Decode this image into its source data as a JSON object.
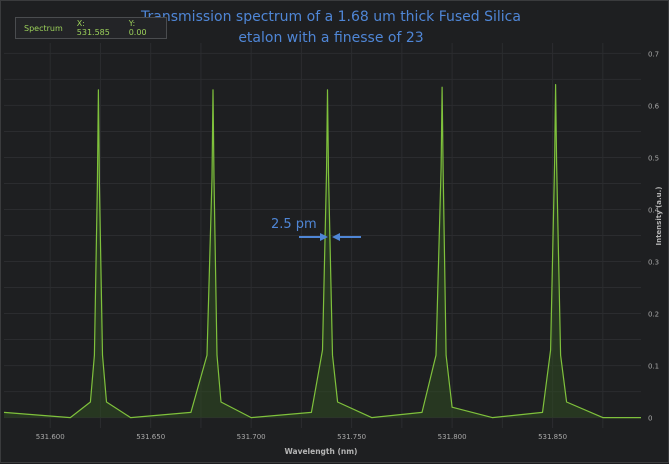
{
  "chart_data": {
    "type": "line",
    "title_lines": [
      "Transmission spectrum of a 1.68 um thick Fused Silica",
      "etalon with a finesse of 23"
    ],
    "xlabel": "Wavelength (nm)",
    "ylabel": "Intensity (a.u.)",
    "xlim": [
      531.577,
      531.894
    ],
    "ylim": [
      -0.02,
      0.72
    ],
    "x_ticks": [
      "531.600",
      "531.650",
      "531.700",
      "531.750",
      "531.800",
      "531.850"
    ],
    "y_ticks": [
      "0",
      "0.1",
      "0.2",
      "0.3",
      "0.4",
      "0.5",
      "0.6",
      "0.7"
    ],
    "grid": true,
    "series": [
      {
        "name": "Spectrum",
        "x": [
          531.577,
          531.61,
          531.62,
          531.622,
          531.6235,
          531.624,
          531.6245,
          531.626,
          531.628,
          531.64,
          531.67,
          531.678,
          531.6805,
          531.681,
          531.6815,
          531.683,
          531.685,
          531.7,
          531.73,
          531.7355,
          531.7375,
          531.738,
          531.7385,
          531.7405,
          531.743,
          531.76,
          531.785,
          531.792,
          531.7945,
          531.795,
          531.7955,
          531.797,
          531.8,
          531.82,
          531.845,
          531.849,
          531.851,
          531.8515,
          531.852,
          531.854,
          531.857,
          531.875,
          531.894
        ],
        "y": [
          0.01,
          0.0,
          0.03,
          0.12,
          0.45,
          0.63,
          0.45,
          0.12,
          0.03,
          0.0,
          0.01,
          0.12,
          0.46,
          0.63,
          0.46,
          0.12,
          0.03,
          0.0,
          0.01,
          0.13,
          0.47,
          0.63,
          0.47,
          0.12,
          0.03,
          0.0,
          0.01,
          0.12,
          0.48,
          0.635,
          0.48,
          0.12,
          0.02,
          0.0,
          0.01,
          0.13,
          0.49,
          0.64,
          0.49,
          0.12,
          0.03,
          0.0,
          0.0
        ]
      }
    ],
    "annotations": [
      {
        "text": "2.5 pm"
      }
    ],
    "colors": {
      "line": "#7fc13c",
      "fill": "#2f4a22",
      "grid": "#2b2c2f",
      "tick_text": "#a8a8a8",
      "title": "#4f86d6",
      "arrow": "#4f86d6"
    }
  },
  "legend": {
    "name": "Spectrum",
    "x_readout": "X: 531.585",
    "y_readout": "Y: 0.00"
  }
}
